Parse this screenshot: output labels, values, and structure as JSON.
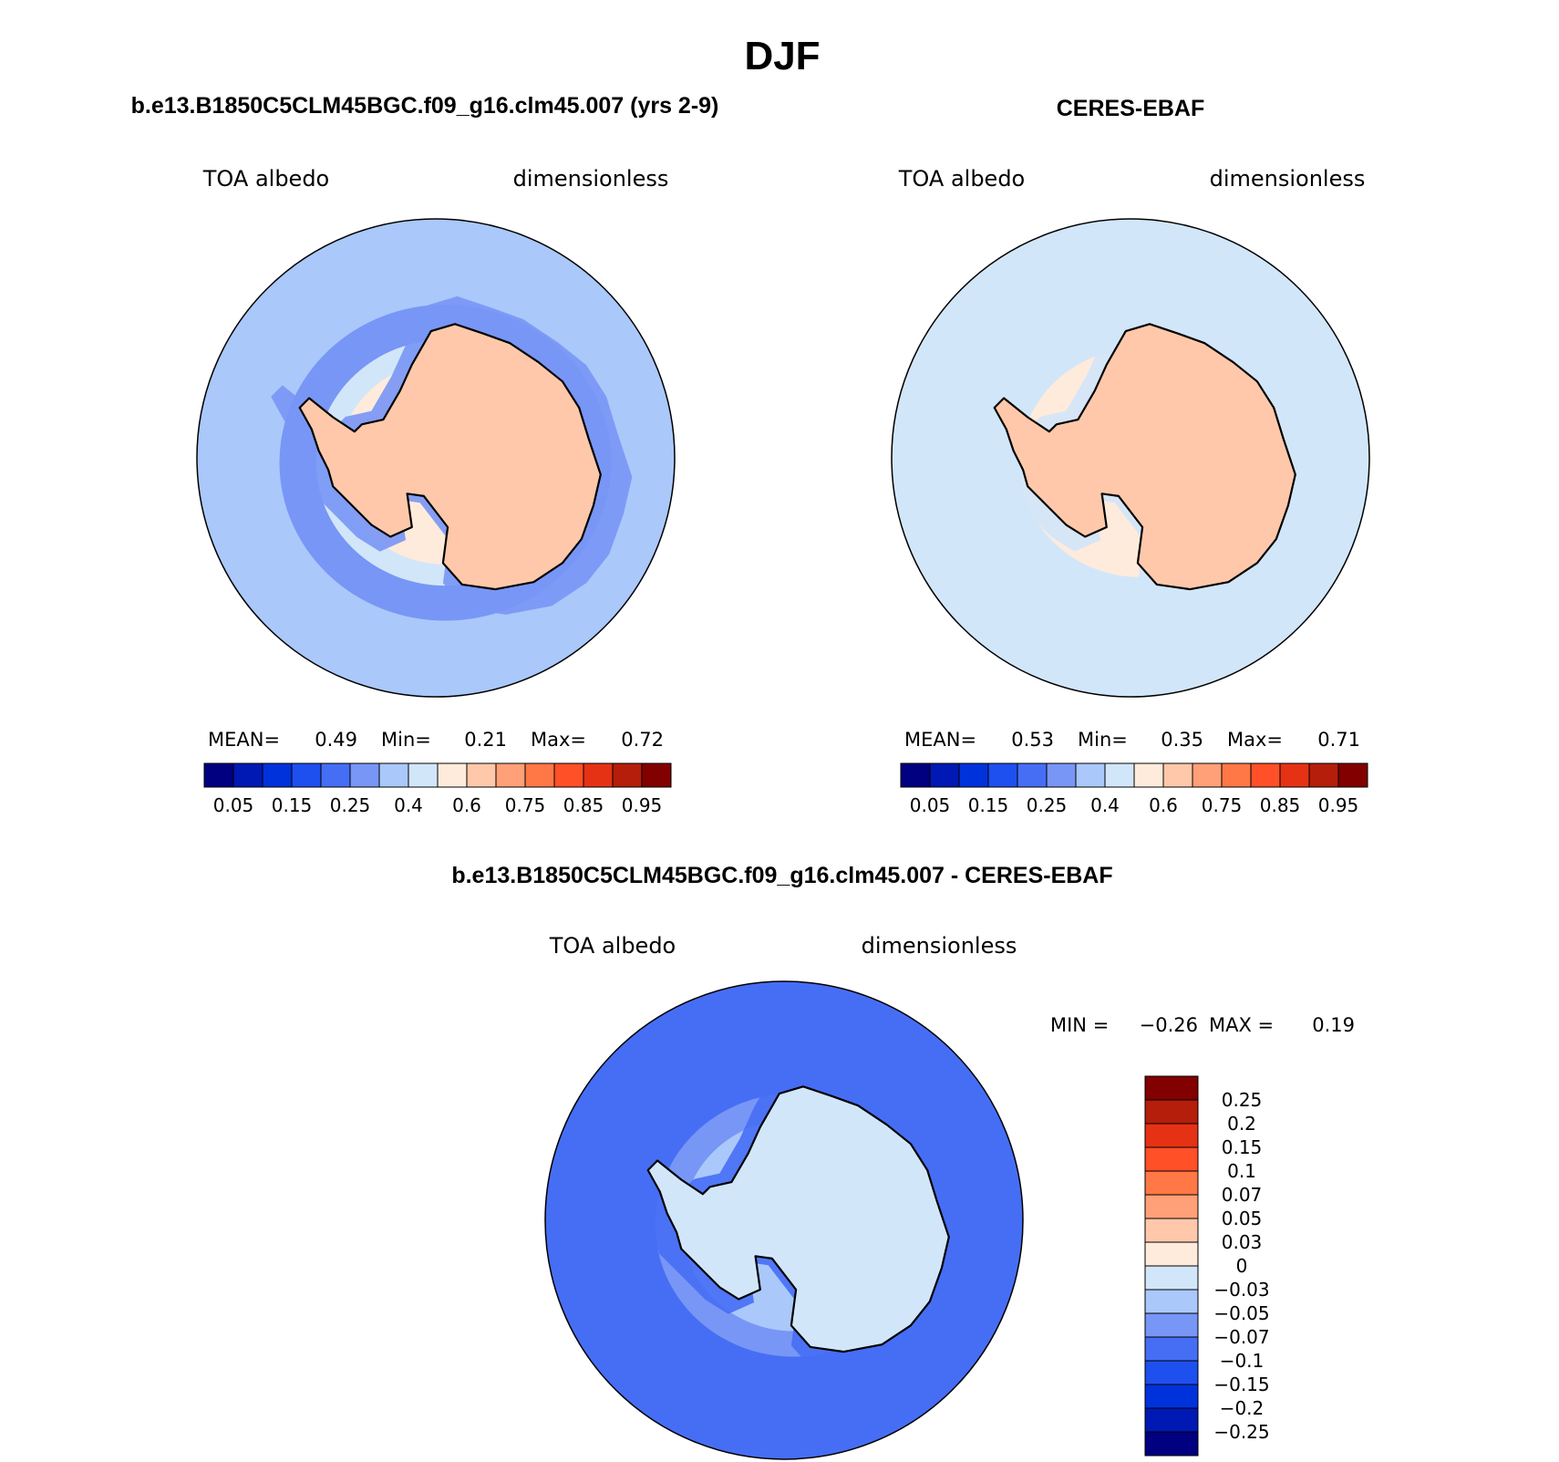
{
  "figure": {
    "title": "DJF",
    "colors": {
      "seq": [
        "#000080",
        "#0019b4",
        "#0032dc",
        "#1e50f0",
        "#466ef5",
        "#7896f5",
        "#aac8fa",
        "#d2e6fa",
        "#ffebdc",
        "#ffc8aa",
        "#ffa078",
        "#ff7846",
        "#ff5028",
        "#e63214",
        "#b41e0a",
        "#820000"
      ],
      "diff": [
        "#000080",
        "#0019b4",
        "#0032dc",
        "#1e50f0",
        "#466ef5",
        "#7896f5",
        "#aac8fa",
        "#d2e6fa",
        "#ffebdc",
        "#ffc8aa",
        "#ffa078",
        "#ff7846",
        "#ff5028",
        "#e63214",
        "#b41e0a",
        "#820000"
      ]
    }
  },
  "chart_data": [
    {
      "type": "heatmap",
      "id": "model",
      "title": "b.e13.B1850C5CLM45BGC.f09_g16.clm45.007 (yrs 2-9)",
      "left_label": "TOA albedo",
      "right_label": "dimensionless",
      "stats": {
        "mean_label": "MEAN=",
        "mean": "0.49",
        "min_label": "Min=",
        "min": "0.21",
        "max_label": "Max=",
        "max": "0.72"
      },
      "colorbar_ticks": [
        "0.05",
        "0.15",
        "0.25",
        "0.4",
        "0.6",
        "0.75",
        "0.85",
        "0.95"
      ],
      "ocean_level": 6,
      "zones": [
        {
          "lat": -65,
          "level": 8
        },
        {
          "lat": -60,
          "level": 7
        },
        {
          "lat": -52,
          "level": 5
        }
      ],
      "continent_level": 9
    },
    {
      "type": "heatmap",
      "id": "obs",
      "title": "CERES-EBAF",
      "left_label": "TOA albedo",
      "right_label": "dimensionless",
      "stats": {
        "mean_label": "MEAN=",
        "mean": "0.53",
        "min_label": "Min=",
        "min": "0.35",
        "max_label": "Max=",
        "max": "0.71"
      },
      "colorbar_ticks": [
        "0.05",
        "0.15",
        "0.25",
        "0.4",
        "0.6",
        "0.75",
        "0.85",
        "0.95"
      ],
      "ocean_level": 7,
      "zones": [
        {
          "lat": -62,
          "level": 8
        },
        {
          "lat": -56,
          "level": 7
        }
      ],
      "continent_level": 9
    },
    {
      "type": "heatmap",
      "id": "diff",
      "title": "b.e13.B1850C5CLM45BGC.f09_g16.clm45.007 - CERES-EBAF",
      "left_label": "TOA albedo",
      "right_label": "dimensionless",
      "stats": {
        "min_label": "MIN =",
        "min": "−0.26",
        "max_label": "MAX =",
        "max": "0.19"
      },
      "colorbar_ticks": [
        "0.25",
        "0.2",
        "0.15",
        "0.1",
        "0.07",
        "0.05",
        "0.03",
        "0",
        "−0.03",
        "−0.05",
        "−0.07",
        "−0.1",
        "−0.15",
        "−0.2",
        "−0.25"
      ],
      "ocean_level": 4,
      "zones": [
        {
          "lat": -64,
          "level": 6
        },
        {
          "lat": -58,
          "level": 5
        },
        {
          "lat": -50,
          "level": 4
        }
      ],
      "continent_level": 7
    }
  ]
}
